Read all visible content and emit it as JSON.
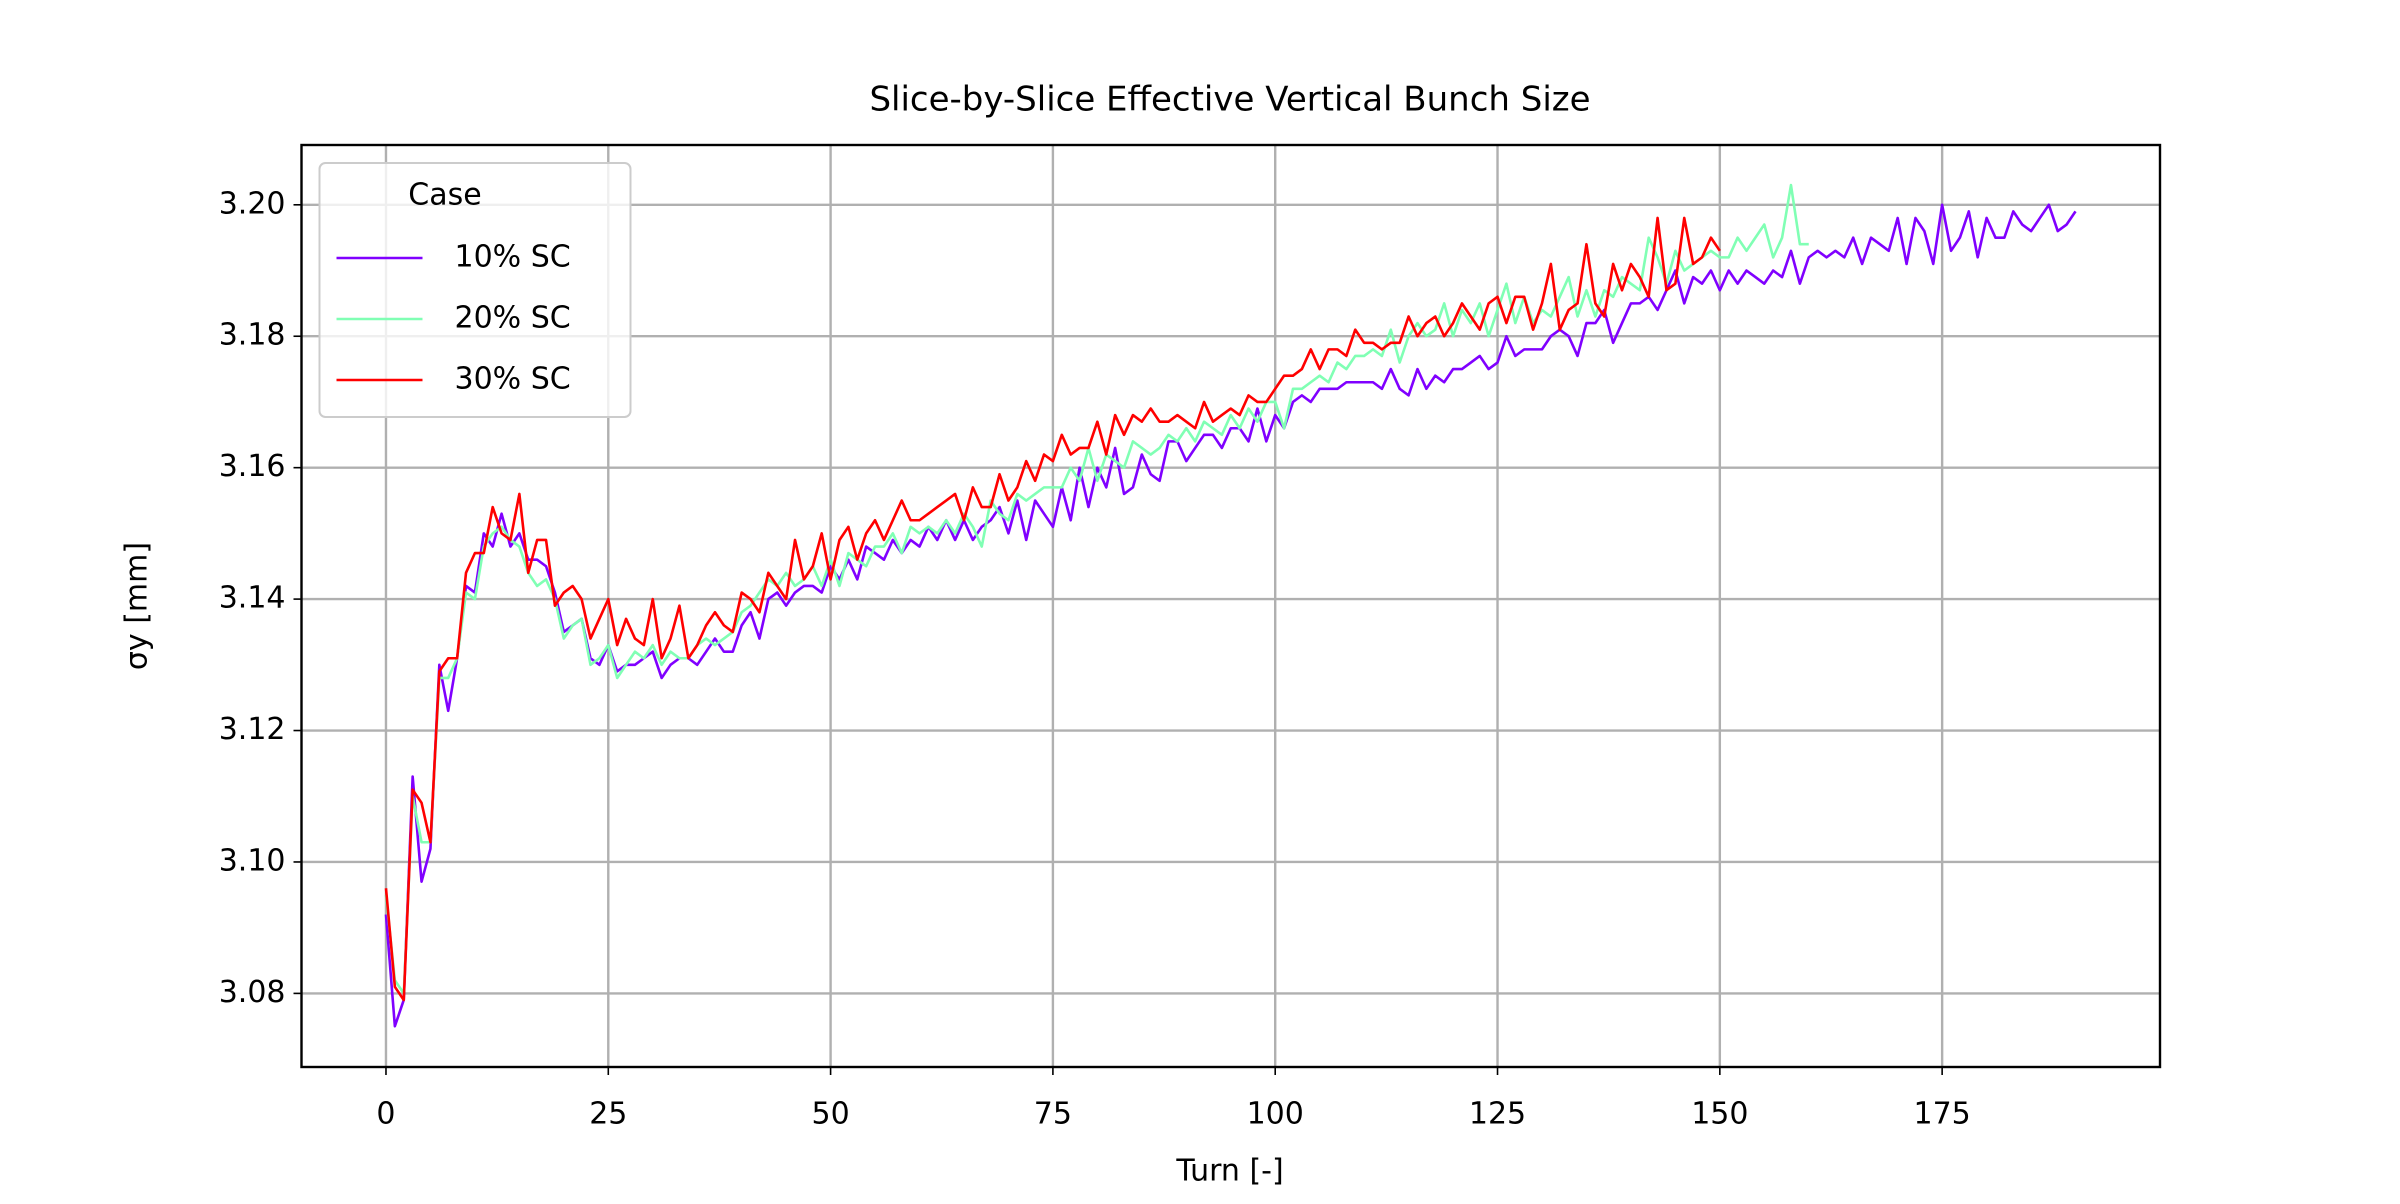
{
  "chart_data": {
    "type": "line",
    "title": "Slice-by-Slice Effective Vertical Bunch Size",
    "xlabel": "Turn [-]",
    "ylabel": "σy [mm]",
    "legend_title": "Case",
    "legend_loc": "upper left",
    "grid": true,
    "xlim": [
      -9.5,
      199.5
    ],
    "ylim": [
      3.0688,
      3.2091
    ],
    "xticks": [
      0,
      25,
      50,
      75,
      100,
      125,
      150,
      175
    ],
    "yticks": [
      3.08,
      {
        "value": 3.1,
        "label": "3.10"
      },
      3.12,
      3.14,
      3.16,
      3.18,
      {
        "value": 3.2,
        "label": "3.20"
      }
    ],
    "x": [
      0,
      1,
      2,
      3,
      4,
      5,
      6,
      7,
      8,
      9,
      10,
      11,
      12,
      13,
      14,
      15,
      16,
      17,
      18,
      19,
      20,
      21,
      22,
      23,
      24,
      25,
      26,
      27,
      28,
      29,
      30,
      31,
      32,
      33,
      34,
      35,
      36,
      37,
      38,
      39,
      40,
      41,
      42,
      43,
      44,
      45,
      46,
      47,
      48,
      49,
      50,
      51,
      52,
      53,
      54,
      55,
      56,
      57,
      58,
      59,
      60,
      61,
      62,
      63,
      64,
      65,
      66,
      67,
      68,
      69,
      70,
      71,
      72,
      73,
      74,
      75,
      76,
      77,
      78,
      79,
      80,
      81,
      82,
      83,
      84,
      85,
      86,
      87,
      88,
      89,
      90,
      91,
      92,
      93,
      94,
      95,
      96,
      97,
      98,
      99,
      100,
      101,
      102,
      103,
      104,
      105,
      106,
      107,
      108,
      109,
      110,
      111,
      112,
      113,
      114,
      115,
      116,
      117,
      118,
      119,
      120,
      121,
      122,
      123,
      124,
      125,
      126,
      127,
      128,
      129,
      130,
      131,
      132,
      133,
      134,
      135,
      136,
      137,
      138,
      139,
      140,
      141,
      142,
      143,
      144,
      145,
      146,
      147,
      148,
      149,
      150,
      151,
      152,
      153,
      154,
      155,
      156,
      157,
      158,
      159,
      160,
      161,
      162,
      163,
      164,
      165,
      166,
      167,
      168,
      169,
      170,
      171,
      172,
      173,
      174,
      175,
      176,
      177,
      178,
      179,
      180,
      181,
      182,
      183,
      184,
      185,
      186,
      187,
      188,
      189,
      190
    ],
    "series": [
      {
        "name": "10% SC",
        "color": "#8000ff",
        "values": [
          3.092,
          3.075,
          3.079,
          3.113,
          3.097,
          3.102,
          3.13,
          3.123,
          3.131,
          3.142,
          3.141,
          3.15,
          3.148,
          3.153,
          3.148,
          3.15,
          3.146,
          3.146,
          3.145,
          3.141,
          3.135,
          3.136,
          3.137,
          3.131,
          3.13,
          3.133,
          3.129,
          3.13,
          3.13,
          3.131,
          3.132,
          3.128,
          3.13,
          3.131,
          3.131,
          3.13,
          3.132,
          3.134,
          3.132,
          3.132,
          3.136,
          3.138,
          3.134,
          3.14,
          3.141,
          3.139,
          3.141,
          3.142,
          3.142,
          3.141,
          3.145,
          3.143,
          3.146,
          3.143,
          3.148,
          3.147,
          3.146,
          3.149,
          3.147,
          3.149,
          3.148,
          3.151,
          3.149,
          3.152,
          3.149,
          3.152,
          3.149,
          3.151,
          3.152,
          3.154,
          3.15,
          3.155,
          3.149,
          3.155,
          3.153,
          3.151,
          3.157,
          3.152,
          3.16,
          3.154,
          3.16,
          3.157,
          3.163,
          3.156,
          3.157,
          3.162,
          3.159,
          3.158,
          3.164,
          3.164,
          3.161,
          3.163,
          3.165,
          3.165,
          3.163,
          3.166,
          3.166,
          3.164,
          3.169,
          3.164,
          3.168,
          3.166,
          3.17,
          3.171,
          3.17,
          3.172,
          3.172,
          3.172,
          3.173,
          3.173,
          3.173,
          3.173,
          3.172,
          3.175,
          3.172,
          3.171,
          3.175,
          3.172,
          3.174,
          3.173,
          3.175,
          3.175,
          3.176,
          3.177,
          3.175,
          3.176,
          3.18,
          3.177,
          3.178,
          3.178,
          3.178,
          3.18,
          3.181,
          3.18,
          3.177,
          3.182,
          3.182,
          3.184,
          3.179,
          3.182,
          3.185,
          3.185,
          3.186,
          3.184,
          3.187,
          3.19,
          3.185,
          3.189,
          3.188,
          3.19,
          3.187,
          3.19,
          3.188,
          3.19,
          3.189,
          3.188,
          3.19,
          3.189,
          3.193,
          3.188,
          3.192,
          3.193,
          3.192,
          3.193,
          3.192,
          3.195,
          3.191,
          3.195,
          3.194,
          3.193,
          3.198,
          3.191,
          3.198,
          3.196,
          3.191,
          3.2,
          3.193,
          3.195,
          3.199,
          3.192,
          3.198,
          3.195,
          3.195,
          3.199,
          3.197,
          3.196,
          3.198,
          3.2,
          3.196,
          3.197,
          3.199
        ]
      },
      {
        "name": "20% SC",
        "color": "#80ffb4",
        "values": [
          3.095,
          3.082,
          3.08,
          3.11,
          3.103,
          3.103,
          3.128,
          3.128,
          3.131,
          3.141,
          3.14,
          3.148,
          3.15,
          3.151,
          3.149,
          3.148,
          3.144,
          3.142,
          3.143,
          3.14,
          3.134,
          3.136,
          3.137,
          3.13,
          3.131,
          3.133,
          3.128,
          3.13,
          3.132,
          3.131,
          3.133,
          3.13,
          3.132,
          3.131,
          3.131,
          3.133,
          3.134,
          3.133,
          3.134,
          3.135,
          3.138,
          3.139,
          3.141,
          3.143,
          3.142,
          3.144,
          3.142,
          3.143,
          3.145,
          3.142,
          3.146,
          3.142,
          3.147,
          3.146,
          3.145,
          3.148,
          3.148,
          3.15,
          3.147,
          3.151,
          3.15,
          3.151,
          3.15,
          3.152,
          3.15,
          3.153,
          3.151,
          3.148,
          3.155,
          3.153,
          3.152,
          3.156,
          3.155,
          3.156,
          3.157,
          3.157,
          3.157,
          3.16,
          3.158,
          3.163,
          3.158,
          3.162,
          3.161,
          3.16,
          3.164,
          3.163,
          3.162,
          3.163,
          3.165,
          3.164,
          3.166,
          3.164,
          3.167,
          3.166,
          3.165,
          3.168,
          3.166,
          3.169,
          3.167,
          3.17,
          3.17,
          3.166,
          3.172,
          3.172,
          3.173,
          3.174,
          3.173,
          3.176,
          3.175,
          3.177,
          3.177,
          3.178,
          3.177,
          3.181,
          3.176,
          3.18,
          3.182,
          3.18,
          3.181,
          3.185,
          3.18,
          3.184,
          3.182,
          3.185,
          3.18,
          3.184,
          3.188,
          3.182,
          3.186,
          3.182,
          3.184,
          3.183,
          3.186,
          3.189,
          3.183,
          3.187,
          3.183,
          3.187,
          3.186,
          3.189,
          3.188,
          3.187,
          3.195,
          3.192,
          3.188,
          3.193,
          3.19,
          3.191,
          3.192,
          3.193,
          3.192,
          3.192,
          3.195,
          3.193,
          3.195,
          3.197,
          3.192,
          3.195,
          3.203,
          3.194,
          3.194,
          null,
          null,
          null,
          null,
          null,
          null,
          null,
          null,
          null,
          null,
          null,
          null,
          null,
          null,
          null,
          null,
          null,
          null,
          null,
          null,
          null,
          null,
          null,
          null,
          null,
          null,
          null,
          null,
          null,
          null
        ]
      },
      {
        "name": "30% SC",
        "color": "#ff0000",
        "values": [
          3.096,
          3.081,
          3.079,
          3.111,
          3.109,
          3.103,
          3.129,
          3.131,
          3.131,
          3.144,
          3.147,
          3.147,
          3.154,
          3.15,
          3.149,
          3.156,
          3.144,
          3.149,
          3.149,
          3.139,
          3.141,
          3.142,
          3.14,
          3.134,
          3.137,
          3.14,
          3.133,
          3.137,
          3.134,
          3.133,
          3.14,
          3.131,
          3.134,
          3.139,
          3.131,
          3.133,
          3.136,
          3.138,
          3.136,
          3.135,
          3.141,
          3.14,
          3.138,
          3.144,
          3.142,
          3.14,
          3.149,
          3.143,
          3.145,
          3.15,
          3.143,
          3.149,
          3.151,
          3.146,
          3.15,
          3.152,
          3.149,
          3.152,
          3.155,
          3.152,
          3.152,
          3.153,
          3.154,
          3.155,
          3.156,
          3.152,
          3.157,
          3.154,
          3.154,
          3.159,
          3.155,
          3.157,
          3.161,
          3.158,
          3.162,
          3.161,
          3.165,
          3.162,
          3.163,
          3.163,
          3.167,
          3.162,
          3.168,
          3.165,
          3.168,
          3.167,
          3.169,
          3.167,
          3.167,
          3.168,
          3.167,
          3.166,
          3.17,
          3.167,
          3.168,
          3.169,
          3.168,
          3.171,
          3.17,
          3.17,
          3.172,
          3.174,
          3.174,
          3.175,
          3.178,
          3.175,
          3.178,
          3.178,
          3.177,
          3.181,
          3.179,
          3.179,
          3.178,
          3.179,
          3.179,
          3.183,
          3.18,
          3.182,
          3.183,
          3.18,
          3.182,
          3.185,
          3.183,
          3.181,
          3.185,
          3.186,
          3.182,
          3.186,
          3.186,
          3.181,
          3.185,
          3.191,
          3.181,
          3.184,
          3.185,
          3.194,
          3.185,
          3.183,
          3.191,
          3.187,
          3.191,
          3.189,
          3.186,
          3.198,
          3.187,
          3.188,
          3.198,
          3.191,
          3.192,
          3.195,
          3.193,
          null,
          null,
          null,
          null,
          null,
          null,
          null,
          null,
          null,
          null,
          null,
          null,
          null,
          null,
          null,
          null,
          null,
          null,
          null,
          null,
          null,
          null,
          null,
          null,
          null,
          null,
          null,
          null,
          null,
          null,
          null,
          null,
          null,
          null,
          null,
          null,
          null,
          null,
          null,
          null
        ]
      }
    ]
  }
}
